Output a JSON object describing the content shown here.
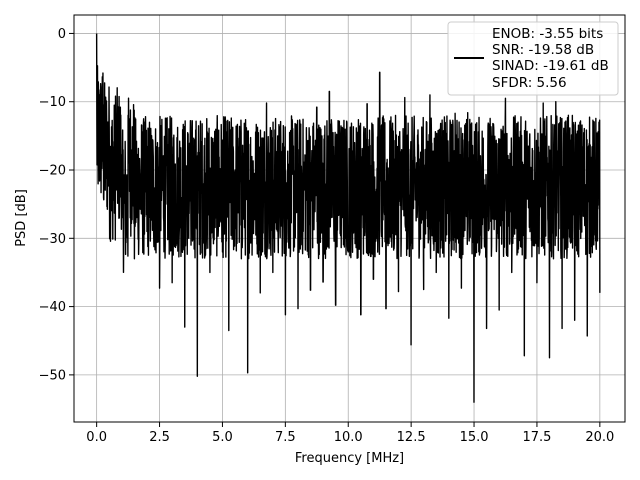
{
  "chart_data": {
    "type": "line",
    "title": "",
    "xlabel": "Frequency [MHz]",
    "ylabel": "PSD [dB]",
    "xlim": [
      -0.9,
      21.0
    ],
    "ylim": [
      -56.9,
      2.7
    ],
    "x_ticks": [
      0.0,
      2.5,
      5.0,
      7.5,
      10.0,
      12.5,
      15.0,
      17.5,
      20.0
    ],
    "x_tick_labels": [
      "0.0",
      "2.5",
      "5.0",
      "7.5",
      "10.0",
      "12.5",
      "15.0",
      "17.5",
      "20.0"
    ],
    "y_ticks": [
      0,
      -10,
      -20,
      -30,
      -40,
      -50
    ],
    "y_tick_labels": [
      "0",
      "−10",
      "−20",
      "−30",
      "−40",
      "−50"
    ],
    "grid": true,
    "line_color": "#000000",
    "legend_placement": "top-right",
    "legend_entries": [
      "ENOB: -3.55 bits",
      "SNR: -19.58 dB",
      "SINAD: -19.61 dB",
      "SFDR: 5.56"
    ],
    "series": [
      {
        "x_start": 0.0,
        "x_end": 20.0,
        "noise_center": -21,
        "noise_top": -12,
        "noise_bottom": -33,
        "values_db": [
          0,
          -5.8,
          -14,
          -9.2,
          -27,
          -12,
          -33,
          -22,
          -29,
          -18,
          -37.3,
          -25,
          -36.5,
          -27,
          -43,
          -31,
          -50.2,
          -22,
          -35,
          -25,
          -32,
          -43.5,
          -20,
          -33,
          -49.7,
          -25,
          -38,
          -10.2,
          -35,
          -24,
          -41.2,
          -13,
          -40.3,
          -20,
          -37.6,
          -10.8,
          -36.4,
          -8.5,
          -39.8,
          -25,
          -32,
          -16,
          -41.2,
          -10.3,
          -36,
          -5.7,
          -40.3,
          -14,
          -37.8,
          -9.4,
          -45.6,
          -26,
          -37.5,
          -9,
          -35,
          -18,
          -41.7,
          -11.7,
          -37.3,
          -11.6,
          -54,
          -29,
          -43.2,
          -13.2,
          -40.5,
          -9.5,
          -35,
          -13,
          -47.2,
          -28,
          -36.5,
          -10.2,
          -47.5,
          -10,
          -43.2,
          -12,
          -42,
          -14,
          -44.3,
          -22,
          -38
        ]
      }
    ]
  }
}
